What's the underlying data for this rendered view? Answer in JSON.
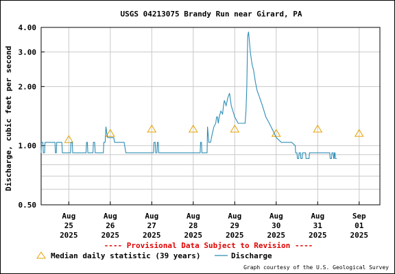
{
  "chart_data": {
    "type": "line",
    "title": "USGS 04213075 Brandy Run near Girard, PA",
    "ylabel": "Discharge, cubic feet per second",
    "y_scale": "log",
    "ylim": [
      0.5,
      4.0
    ],
    "y_ticks": [
      "4.00",
      "3.00",
      "2.00",
      "1.00",
      "0.50"
    ],
    "x_ticks": [
      {
        "date": "2025-08-25T00:00",
        "lines": [
          "Aug",
          "25",
          "2025"
        ]
      },
      {
        "date": "2025-08-26T00:00",
        "lines": [
          "Aug",
          "26",
          "2025"
        ]
      },
      {
        "date": "2025-08-27T00:00",
        "lines": [
          "Aug",
          "27",
          "2025"
        ]
      },
      {
        "date": "2025-08-28T00:00",
        "lines": [
          "Aug",
          "28",
          "2025"
        ]
      },
      {
        "date": "2025-08-29T00:00",
        "lines": [
          "Aug",
          "29",
          "2025"
        ]
      },
      {
        "date": "2025-08-30T00:00",
        "lines": [
          "Aug",
          "30",
          "2025"
        ]
      },
      {
        "date": "2025-08-31T00:00",
        "lines": [
          "Aug",
          "31",
          "2025"
        ]
      },
      {
        "date": "2025-09-01T00:00",
        "lines": [
          "Sep",
          "01",
          "2025"
        ]
      }
    ],
    "xlim": [
      "2025-08-24T08:00",
      "2025-09-01T12:00"
    ],
    "grid": true,
    "provisional_note": "---- Provisional Data Subject to Revision ----",
    "legend": [
      {
        "label": "Median daily statistic (39 years)",
        "marker": "triangle",
        "color": "#e6a200"
      },
      {
        "label": "Discharge",
        "marker": "line",
        "color": "#2b8cb5"
      }
    ],
    "credit": "Graph courtesy of the U.S. Geological Survey",
    "series": [
      {
        "name": "Median daily statistic (39 years)",
        "kind": "marker",
        "x": [
          "2025-08-25T00:00",
          "2025-08-26T00:00",
          "2025-08-27T00:00",
          "2025-08-28T00:00",
          "2025-08-29T00:00",
          "2025-08-30T00:00",
          "2025-08-31T00:00",
          "2025-09-01T00:00"
        ],
        "y": [
          1.08,
          1.16,
          1.22,
          1.22,
          1.22,
          1.16,
          1.22,
          1.16
        ]
      },
      {
        "name": "Discharge",
        "kind": "line",
        "x": [
          "2025-08-24T08:00",
          "2025-08-24T08:15",
          "2025-08-24T09:00",
          "2025-08-24T09:15",
          "2025-08-24T10:00",
          "2025-08-24T10:15",
          "2025-08-24T16:00",
          "2025-08-24T16:15",
          "2025-08-24T16:45",
          "2025-08-24T17:00",
          "2025-08-24T20:00",
          "2025-08-24T20:15",
          "2025-08-25T01:00",
          "2025-08-25T01:15",
          "2025-08-25T02:00",
          "2025-08-25T02:15",
          "2025-08-25T03:00",
          "2025-08-25T03:15",
          "2025-08-25T10:00",
          "2025-08-25T10:15",
          "2025-08-25T10:45",
          "2025-08-25T11:00",
          "2025-08-25T14:00",
          "2025-08-25T14:15",
          "2025-08-25T15:00",
          "2025-08-25T15:15",
          "2025-08-25T20:00",
          "2025-08-25T20:15",
          "2025-08-25T21:00",
          "2025-08-25T21:30",
          "2025-08-25T22:00",
          "2025-08-25T22:30",
          "2025-08-26T00:00",
          "2025-08-26T01:00",
          "2025-08-26T02:00",
          "2025-08-26T02:30",
          "2025-08-26T06:00",
          "2025-08-26T08:00",
          "2025-08-26T09:00",
          "2025-08-26T21:00",
          "2025-08-26T21:15",
          "2025-08-27T01:00",
          "2025-08-27T01:15",
          "2025-08-27T02:00",
          "2025-08-27T02:15",
          "2025-08-27T03:00",
          "2025-08-27T03:15",
          "2025-08-27T03:45",
          "2025-08-27T04:00",
          "2025-08-27T20:00",
          "2025-08-27T20:15",
          "2025-08-27T21:00",
          "2025-08-27T22:00",
          "2025-08-28T00:00",
          "2025-08-28T04:00",
          "2025-08-28T04:15",
          "2025-08-28T04:45",
          "2025-08-28T05:00",
          "2025-08-28T06:00",
          "2025-08-28T07:00",
          "2025-08-28T08:00",
          "2025-08-28T08:15",
          "2025-08-28T09:00",
          "2025-08-28T10:00",
          "2025-08-28T11:00",
          "2025-08-28T12:00",
          "2025-08-28T13:00",
          "2025-08-28T13:30",
          "2025-08-28T14:00",
          "2025-08-28T14:30",
          "2025-08-28T15:00",
          "2025-08-28T16:00",
          "2025-08-28T17:00",
          "2025-08-28T17:30",
          "2025-08-28T18:00",
          "2025-08-28T19:00",
          "2025-08-28T20:00",
          "2025-08-28T21:00",
          "2025-08-28T22:00",
          "2025-08-29T00:00",
          "2025-08-29T02:00",
          "2025-08-29T03:00",
          "2025-08-29T05:00",
          "2025-08-29T06:00",
          "2025-08-29T06:30",
          "2025-08-29T07:00",
          "2025-08-29T07:30",
          "2025-08-29T08:00",
          "2025-08-29T08:30",
          "2025-08-29T09:00",
          "2025-08-29T10:00",
          "2025-08-29T11:00",
          "2025-08-29T12:00",
          "2025-08-29T13:00",
          "2025-08-29T14:00",
          "2025-08-29T16:00",
          "2025-08-29T18:00",
          "2025-08-29T20:00",
          "2025-08-29T22:00",
          "2025-08-30T00:00",
          "2025-08-30T03:00",
          "2025-08-30T04:00",
          "2025-08-30T06:00",
          "2025-08-30T08:00",
          "2025-08-30T08:30",
          "2025-08-30T09:00",
          "2025-08-30T11:00",
          "2025-08-30T11:15",
          "2025-08-30T12:00",
          "2025-08-30T12:15",
          "2025-08-30T13:00",
          "2025-08-30T13:15",
          "2025-08-30T14:00",
          "2025-08-30T14:15",
          "2025-08-30T15:00",
          "2025-08-30T15:15",
          "2025-08-30T17:00",
          "2025-08-30T17:15",
          "2025-08-30T19:00",
          "2025-08-30T19:15",
          "2025-08-31T00:00",
          "2025-08-31T00:15",
          "2025-08-31T07:00",
          "2025-08-31T07:15",
          "2025-08-31T08:00",
          "2025-08-31T08:15",
          "2025-08-31T09:00",
          "2025-08-31T09:15",
          "2025-08-31T09:30",
          "2025-08-31T09:45",
          "2025-08-31T10:00",
          "2025-08-31T10:15",
          "2025-08-31T10:45",
          "2025-08-31T11:00"
        ],
        "y": [
          0.92,
          1.04,
          1.04,
          0.92,
          0.92,
          1.04,
          1.04,
          0.92,
          0.92,
          1.04,
          1.04,
          0.92,
          0.92,
          1.04,
          1.04,
          0.92,
          0.92,
          0.92,
          0.92,
          1.04,
          1.04,
          0.92,
          0.92,
          1.04,
          1.04,
          0.92,
          0.92,
          1.04,
          1.04,
          1.25,
          1.15,
          1.1,
          1.1,
          1.1,
          1.1,
          1.04,
          1.04,
          1.04,
          0.92,
          0.92,
          0.92,
          0.92,
          1.04,
          1.04,
          0.92,
          0.92,
          1.04,
          1.04,
          0.92,
          0.92,
          0.92,
          0.92,
          0.92,
          0.92,
          0.92,
          1.04,
          1.04,
          0.92,
          0.92,
          0.92,
          0.92,
          1.25,
          1.04,
          1.04,
          1.15,
          1.25,
          1.3,
          1.4,
          1.4,
          1.3,
          1.4,
          1.5,
          1.45,
          1.6,
          1.7,
          1.6,
          1.75,
          1.85,
          1.6,
          1.4,
          1.3,
          1.3,
          1.3,
          1.3,
          1.5,
          2.0,
          3.6,
          3.8,
          3.4,
          3.0,
          2.6,
          2.4,
          2.1,
          1.9,
          1.8,
          1.6,
          1.4,
          1.3,
          1.2,
          1.1,
          1.04,
          1.04,
          1.04,
          1.04,
          1.04,
          1.04,
          1.0,
          0.92,
          0.92,
          0.86,
          0.86,
          0.92,
          0.92,
          0.86,
          0.86,
          0.92,
          0.92,
          0.86,
          0.86,
          0.92,
          0.92,
          0.92,
          0.92,
          0.86,
          0.86,
          0.92,
          0.92,
          0.86,
          0.86,
          0.92,
          0.92,
          0.86,
          0.86,
          0.86
        ]
      }
    ]
  }
}
